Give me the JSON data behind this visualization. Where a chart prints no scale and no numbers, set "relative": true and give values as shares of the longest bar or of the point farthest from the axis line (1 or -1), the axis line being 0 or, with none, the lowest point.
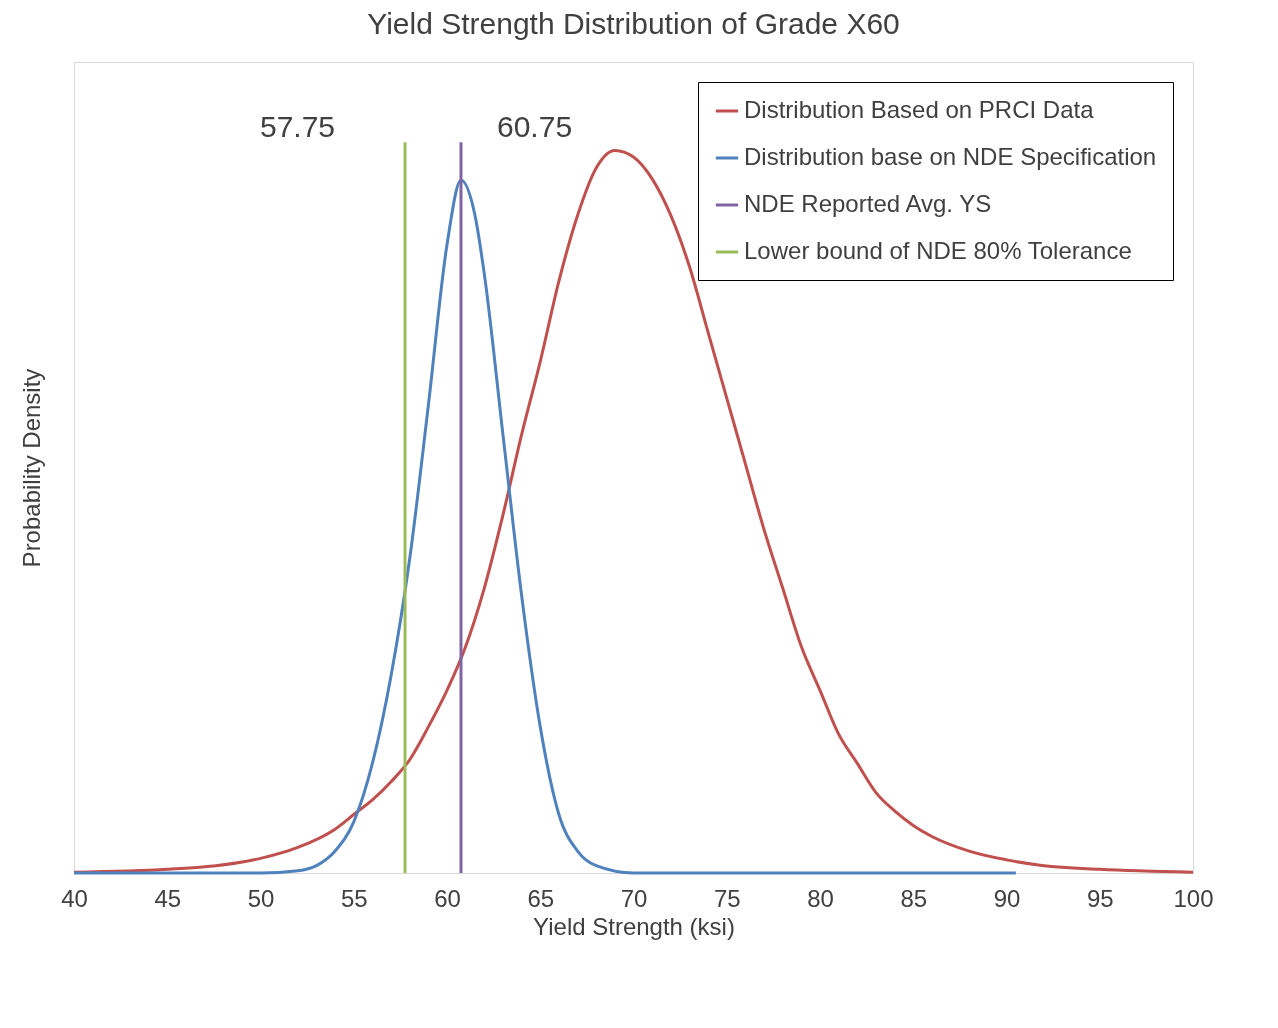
{
  "chart_data": {
    "type": "line",
    "title": "Yield Strength  Distribution of Grade X60",
    "xlabel": "Yield Strength (ksi)",
    "ylabel": "Probability Density",
    "relative": true,
    "xlim": [
      40,
      100
    ],
    "xticks": [
      40,
      45,
      50,
      55,
      60,
      65,
      70,
      75,
      80,
      85,
      90,
      95,
      100
    ],
    "grid": false,
    "legend": "top right",
    "marker": "none",
    "line_style": "solid",
    "series": [
      {
        "name": "Distribution Based on PRCI Data",
        "color": "#c0504d",
        "x": [
          40,
          45,
          50,
          52,
          54,
          55,
          56,
          57,
          58,
          59,
          60,
          61,
          62,
          63,
          64,
          65,
          66,
          67,
          68,
          69,
          70,
          71,
          72,
          73,
          74,
          75,
          76,
          77,
          78,
          79,
          80,
          81,
          82,
          83,
          84,
          85,
          86,
          88,
          90,
          92,
          95,
          100
        ],
        "values": [
          0.001,
          0.005,
          0.02,
          0.035,
          0.06,
          0.08,
          0.1,
          0.125,
          0.155,
          0.2,
          0.25,
          0.31,
          0.39,
          0.49,
          0.6,
          0.7,
          0.81,
          0.9,
          0.965,
          0.989,
          0.98,
          0.95,
          0.9,
          0.83,
          0.74,
          0.65,
          0.56,
          0.47,
          0.39,
          0.31,
          0.25,
          0.19,
          0.15,
          0.11,
          0.085,
          0.065,
          0.05,
          0.03,
          0.018,
          0.01,
          0.005,
          0.001
        ]
      },
      {
        "name": "Distribution base on NDE Specification",
        "color": "#4f81bd",
        "x": [
          40,
          50,
          52,
          53,
          54,
          55,
          56,
          57,
          58,
          59,
          60,
          60.75,
          61.5,
          62,
          63,
          64,
          65,
          66,
          67,
          68,
          70,
          80,
          90.5
        ],
        "values": [
          0,
          0,
          0.003,
          0.01,
          0.03,
          0.07,
          0.15,
          0.27,
          0.43,
          0.64,
          0.86,
          0.948,
          0.9,
          0.82,
          0.6,
          0.38,
          0.2,
          0.08,
          0.03,
          0.01,
          0,
          0,
          0
        ]
      },
      {
        "name": "NDE Reported Avg. YS",
        "color": "#8064a2",
        "x": [
          60.75,
          60.75
        ],
        "values": [
          0,
          1
        ]
      },
      {
        "name": "Lower bound of NDE 80% Tolerance",
        "color": "#9bbb59",
        "x": [
          57.75,
          57.75
        ],
        "values": [
          0,
          1
        ]
      }
    ],
    "annotations": [
      {
        "text": "57.75",
        "x": 57.75,
        "y": 1
      },
      {
        "text": "60.75",
        "x": 60.75,
        "y": 1
      }
    ]
  }
}
